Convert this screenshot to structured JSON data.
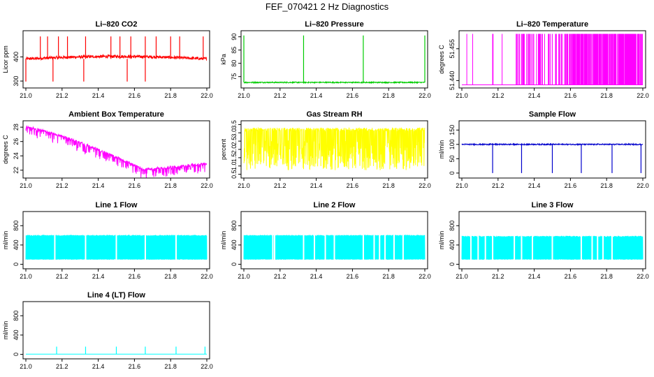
{
  "page": {
    "title": "FEF_070421  2 Hz Diagnostics"
  },
  "chart_data": [
    {
      "id": "co2",
      "type": "line",
      "title": "Li–820 CO2",
      "ylabel": "Licor ppm",
      "color": "#ff0000",
      "xlim": [
        21.0,
        22.0
      ],
      "ylim": [
        280,
        500
      ],
      "xticks": [
        "21.0",
        "21.2",
        "21.4",
        "21.6",
        "21.8",
        "22.0"
      ],
      "yticks": [
        "300",
        "400"
      ],
      "ytick_values": [
        300,
        400
      ],
      "pattern": "co2",
      "base": 392,
      "spikes_up": [
        21.08,
        21.12,
        21.18,
        21.23,
        21.33,
        21.47,
        21.52,
        21.58,
        21.66,
        21.72,
        21.8,
        21.85,
        21.98
      ],
      "spikes_down": [
        21.0,
        21.15,
        21.32,
        21.56,
        21.66
      ]
    },
    {
      "id": "pressure",
      "type": "line",
      "title": "Li–820 Pressure",
      "ylabel": "kPa",
      "color": "#00cc00",
      "xlim": [
        21.0,
        22.0
      ],
      "ylim": [
        71.5,
        91.5
      ],
      "xticks": [
        "21.0",
        "21.2",
        "21.4",
        "21.6",
        "21.8",
        "22.0"
      ],
      "yticks": [
        "75",
        "80",
        "85",
        "90"
      ],
      "ytick_values": [
        75,
        80,
        85,
        90
      ],
      "pattern": "pressure",
      "base": 72.8,
      "spikes_up": [
        21.0,
        21.33,
        21.66,
        22.0
      ]
    },
    {
      "id": "licor-temp",
      "type": "line",
      "title": "Li–820 Temperature",
      "ylabel": "degrees C",
      "color": "#ff00ff",
      "xlim": [
        21.0,
        22.0
      ],
      "ylim": [
        51.4375,
        51.4625
      ],
      "xticks": [
        "21.0",
        "21.2",
        "21.4",
        "21.6",
        "21.8",
        "22.0"
      ],
      "yticks": [
        "51.440",
        "51.455"
      ],
      "ytick_values": [
        51.44,
        51.455
      ],
      "pattern": "binary"
    },
    {
      "id": "ambient-temp",
      "type": "line",
      "title": "Ambient Box Temperature",
      "ylabel": "degrees C",
      "color": "#ff00ff",
      "xlim": [
        21.0,
        22.0
      ],
      "ylim": [
        21.2,
        28.6
      ],
      "xticks": [
        "21.0",
        "21.2",
        "21.4",
        "21.6",
        "21.8",
        "22.0"
      ],
      "yticks": [
        "22",
        "24",
        "26",
        "28"
      ],
      "ytick_values": [
        22,
        24,
        26,
        28
      ],
      "pattern": "ambient"
    },
    {
      "id": "rh",
      "type": "line",
      "title": "Gas Stream RH",
      "ylabel": "percent",
      "color": "#ffff00",
      "xlim": [
        21.0,
        22.0
      ],
      "ylim": [
        0.4,
        3.6
      ],
      "xticks": [
        "21.0",
        "21.2",
        "21.4",
        "21.6",
        "21.8",
        "22.0"
      ],
      "yticks": [
        "0.5",
        "1.0",
        "1.5",
        "2.0",
        "2.5",
        "3.0",
        "3.5"
      ],
      "ytick_values": [
        0.5,
        1.0,
        1.5,
        2.0,
        2.5,
        3.0,
        3.5
      ],
      "pattern": "rh",
      "high": 3.3,
      "low": 0.75
    },
    {
      "id": "sample-flow",
      "type": "line",
      "title": "Sample Flow",
      "ylabel": "ml/min",
      "color": "#0000cc",
      "xlim": [
        21.0,
        22.0
      ],
      "ylim": [
        -10,
        175
      ],
      "xticks": [
        "21.0",
        "21.2",
        "21.4",
        "21.6",
        "21.8",
        "22.0"
      ],
      "yticks": [
        "0",
        "50",
        "100",
        "150"
      ],
      "ytick_values": [
        0,
        50,
        100,
        150
      ],
      "pattern": "sample",
      "base": 100,
      "spikes_down": [
        21.17,
        21.33,
        21.5,
        21.66,
        21.83,
        21.99
      ]
    },
    {
      "id": "line1-flow",
      "type": "line",
      "title": "Line 1 Flow",
      "ylabel": "ml/min",
      "color": "#00ffff",
      "xlim": [
        21.0,
        22.0
      ],
      "ylim": [
        -50,
        1050
      ],
      "xticks": [
        "21.0",
        "21.2",
        "21.4",
        "21.6",
        "21.8",
        "22.0"
      ],
      "yticks": [
        "0",
        "400",
        "800"
      ],
      "ytick_values": [
        0,
        400,
        800
      ],
      "pattern": "flow",
      "high": 600,
      "low": 100,
      "gaps": [
        21.16,
        21.33,
        21.5,
        21.66,
        21.83
      ]
    },
    {
      "id": "line2-flow",
      "type": "line",
      "title": "Line 2 Flow",
      "ylabel": "ml/min",
      "color": "#00ffff",
      "xlim": [
        21.0,
        22.0
      ],
      "ylim": [
        -50,
        1050
      ],
      "xticks": [
        "21.0",
        "21.2",
        "21.4",
        "21.6",
        "21.8",
        "22.0"
      ],
      "yticks": [
        "0",
        "400",
        "800"
      ],
      "ytick_values": [
        0,
        400,
        800
      ],
      "pattern": "flow",
      "high": 600,
      "low": 100,
      "gaps": [
        21.16,
        21.17,
        21.33,
        21.39,
        21.45,
        21.5,
        21.66,
        21.72,
        21.75,
        21.78,
        21.83,
        21.88
      ]
    },
    {
      "id": "line3-flow",
      "type": "line",
      "title": "Line 3 Flow",
      "ylabel": "ml/min",
      "color": "#00ffff",
      "xlim": [
        21.0,
        22.0
      ],
      "ylim": [
        -50,
        1050
      ],
      "xticks": [
        "21.0",
        "21.2",
        "21.4",
        "21.6",
        "21.8",
        "22.0"
      ],
      "yticks": [
        "0",
        "400",
        "800"
      ],
      "ytick_values": [
        0,
        400,
        800
      ],
      "pattern": "flow",
      "high": 580,
      "low": 100,
      "gaps": [
        21.05,
        21.09,
        21.13,
        21.17,
        21.29,
        21.33,
        21.39,
        21.5,
        21.66,
        21.72,
        21.75,
        21.78,
        21.83
      ]
    },
    {
      "id": "line4-flow",
      "type": "line",
      "title": "Line 4 (LT) Flow",
      "ylabel": "ml/min",
      "color": "#00ffff",
      "xlim": [
        21.0,
        22.0
      ],
      "ylim": [
        -50,
        1050
      ],
      "xticks": [
        "21.0",
        "21.2",
        "21.4",
        "21.6",
        "21.8",
        "22.0"
      ],
      "yticks": [
        "0",
        "400",
        "800"
      ],
      "ytick_values": [
        0,
        400,
        800
      ],
      "pattern": "lt",
      "base": 5,
      "spikes_up": [
        21.17,
        21.33,
        21.5,
        21.66,
        21.83,
        21.99
      ]
    }
  ]
}
